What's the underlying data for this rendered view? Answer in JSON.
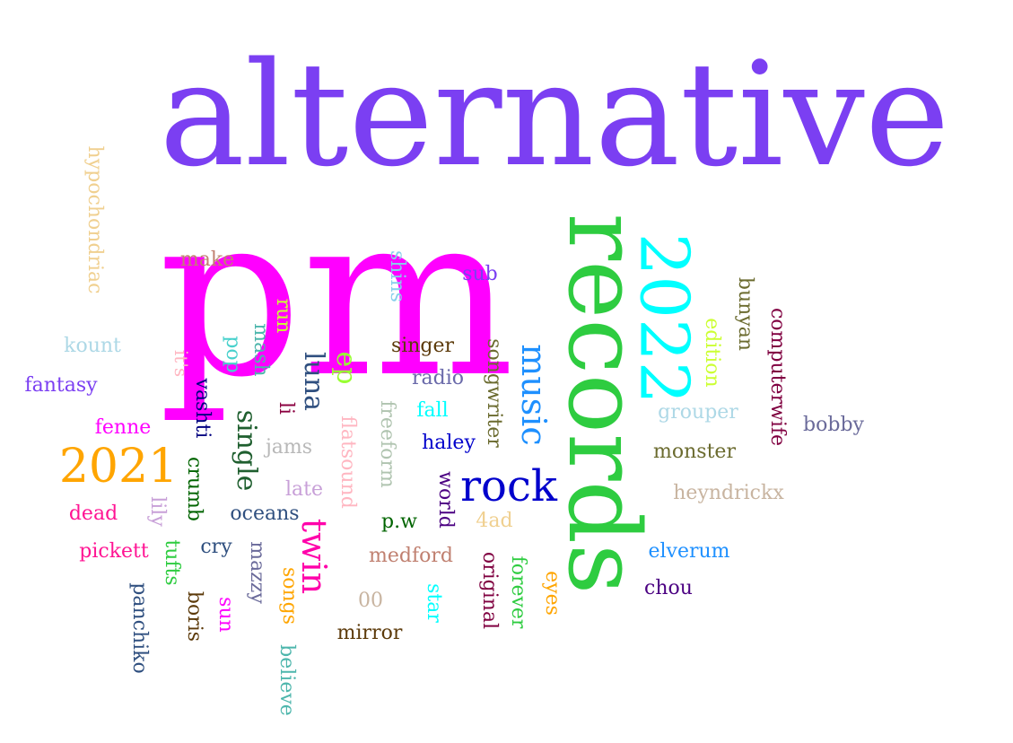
{
  "words": [
    {
      "text": "alternative",
      "color": "#7b3ff2",
      "rotate": false
    },
    {
      "text": "pm",
      "color": "#ff00ff",
      "rotate": false
    },
    {
      "text": "records",
      "color": "#2ecc40",
      "rotate": true
    },
    {
      "text": "2022",
      "color": "#00ffff",
      "rotate": true
    },
    {
      "text": "rock",
      "color": "#0000cc",
      "rotate": false
    },
    {
      "text": "2021",
      "color": "#ffa500",
      "rotate": false
    },
    {
      "text": "music",
      "color": "#1e90ff",
      "rotate": true
    },
    {
      "text": "twin",
      "color": "#ff00aa",
      "rotate": true
    },
    {
      "text": "luna",
      "color": "#2f4f7f",
      "rotate": true
    },
    {
      "text": "single",
      "color": "#1f5f2f",
      "rotate": true
    },
    {
      "text": "ep",
      "color": "#99ff33",
      "rotate": true
    },
    {
      "text": "hypochondriac",
      "color": "#f0d090",
      "rotate": true
    },
    {
      "text": "make",
      "color": "#c08070",
      "rotate": false
    },
    {
      "text": "shins",
      "color": "#87ceeb",
      "rotate": true
    },
    {
      "text": "sub",
      "color": "#7b3ff2",
      "rotate": false
    },
    {
      "text": "run",
      "color": "#ccff33",
      "rotate": true
    },
    {
      "text": "kount",
      "color": "#add8e6",
      "rotate": false
    },
    {
      "text": "it's",
      "color": "#ffb6c1",
      "rotate": true
    },
    {
      "text": "pop",
      "color": "#48d1cc",
      "rotate": true
    },
    {
      "text": "mash",
      "color": "#4db6ac",
      "rotate": true
    },
    {
      "text": "singer",
      "color": "#5c3a0a",
      "rotate": false
    },
    {
      "text": "radio",
      "color": "#6a6aaa",
      "rotate": false
    },
    {
      "text": "songwriter",
      "color": "#6b6b2f",
      "rotate": true
    },
    {
      "text": "bunyan",
      "color": "#6b6b2f",
      "rotate": true
    },
    {
      "text": "edition",
      "color": "#ccff33",
      "rotate": true
    },
    {
      "text": "computerwife",
      "color": "#800040",
      "rotate": true
    },
    {
      "text": "fantasy",
      "color": "#7b3ff2",
      "rotate": false
    },
    {
      "text": "vashti",
      "color": "#000080",
      "rotate": true
    },
    {
      "text": "li",
      "color": "#8b0040",
      "rotate": true
    },
    {
      "text": "freeform",
      "color": "#b0c4b0",
      "rotate": true
    },
    {
      "text": "fall",
      "color": "#00ffff",
      "rotate": false
    },
    {
      "text": "grouper",
      "color": "#add8e6",
      "rotate": false
    },
    {
      "text": "bobby",
      "color": "#6a6a9a",
      "rotate": false
    },
    {
      "text": "fenne",
      "color": "#ff00ff",
      "rotate": false
    },
    {
      "text": "jams",
      "color": "#b8b8b8",
      "rotate": false
    },
    {
      "text": "flatsound",
      "color": "#ffb6c1",
      "rotate": true
    },
    {
      "text": "haley",
      "color": "#0000cc",
      "rotate": false
    },
    {
      "text": "monster",
      "color": "#6b6b2f",
      "rotate": false
    },
    {
      "text": "crumb",
      "color": "#006400",
      "rotate": true
    },
    {
      "text": "late",
      "color": "#c8a0d8",
      "rotate": false
    },
    {
      "text": "world",
      "color": "#4b0082",
      "rotate": true
    },
    {
      "text": "heyndrickx",
      "color": "#c8b4a0",
      "rotate": false
    },
    {
      "text": "dead",
      "color": "#ff1493",
      "rotate": false
    },
    {
      "text": "lily",
      "color": "#c8a0d8",
      "rotate": true
    },
    {
      "text": "oceans",
      "color": "#2f4f7f",
      "rotate": false
    },
    {
      "text": "p.w",
      "color": "#006400",
      "rotate": false
    },
    {
      "text": "4ad",
      "color": "#f0d090",
      "rotate": false
    },
    {
      "text": "pickett",
      "color": "#ff1493",
      "rotate": false
    },
    {
      "text": "tufts",
      "color": "#2ecc40",
      "rotate": true
    },
    {
      "text": "cry",
      "color": "#2f4f7f",
      "rotate": false
    },
    {
      "text": "mazzy",
      "color": "#6a6a9a",
      "rotate": true
    },
    {
      "text": "medford",
      "color": "#c08070",
      "rotate": false
    },
    {
      "text": "original",
      "color": "#800040",
      "rotate": true
    },
    {
      "text": "forever",
      "color": "#2ecc40",
      "rotate": true
    },
    {
      "text": "eyes",
      "color": "#ffa500",
      "rotate": true
    },
    {
      "text": "elverum",
      "color": "#1e90ff",
      "rotate": false
    },
    {
      "text": "panchiko",
      "color": "#2f4f7f",
      "rotate": true
    },
    {
      "text": "boris",
      "color": "#5c3a0a",
      "rotate": true
    },
    {
      "text": "sun",
      "color": "#ff00ff",
      "rotate": true
    },
    {
      "text": "songs",
      "color": "#ffa500",
      "rotate": true
    },
    {
      "text": "00",
      "color": "#c8b4a0",
      "rotate": false
    },
    {
      "text": "star",
      "color": "#00ffff",
      "rotate": true
    },
    {
      "text": "chou",
      "color": "#4b0082",
      "rotate": false
    },
    {
      "text": "mirror",
      "color": "#5c3a0a",
      "rotate": false
    },
    {
      "text": "believe",
      "color": "#4db6ac",
      "rotate": true
    }
  ]
}
